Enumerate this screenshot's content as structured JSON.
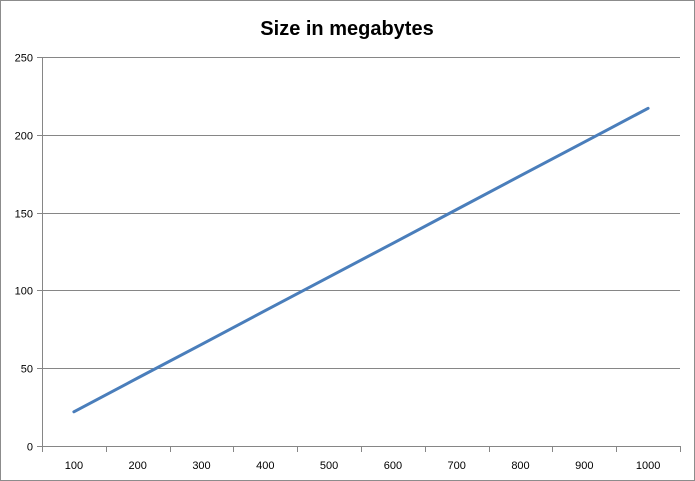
{
  "chart_data": {
    "type": "line",
    "title": "Size in megabytes",
    "xlabel": "",
    "ylabel": "",
    "categories": [
      "100",
      "200",
      "300",
      "400",
      "500",
      "600",
      "700",
      "800",
      "900",
      "1000"
    ],
    "series": [
      {
        "values": [
          22,
          43.7,
          65.3,
          87,
          108.7,
          130.3,
          152,
          173.7,
          195.3,
          217
        ]
      }
    ],
    "ylim": [
      0,
      250
    ],
    "yticks": [
      0,
      50,
      100,
      150,
      200,
      250
    ],
    "grid": true,
    "legend": "none",
    "colors": {
      "line": "#4a7ebb",
      "grid": "#868686",
      "axis": "#868686"
    }
  }
}
